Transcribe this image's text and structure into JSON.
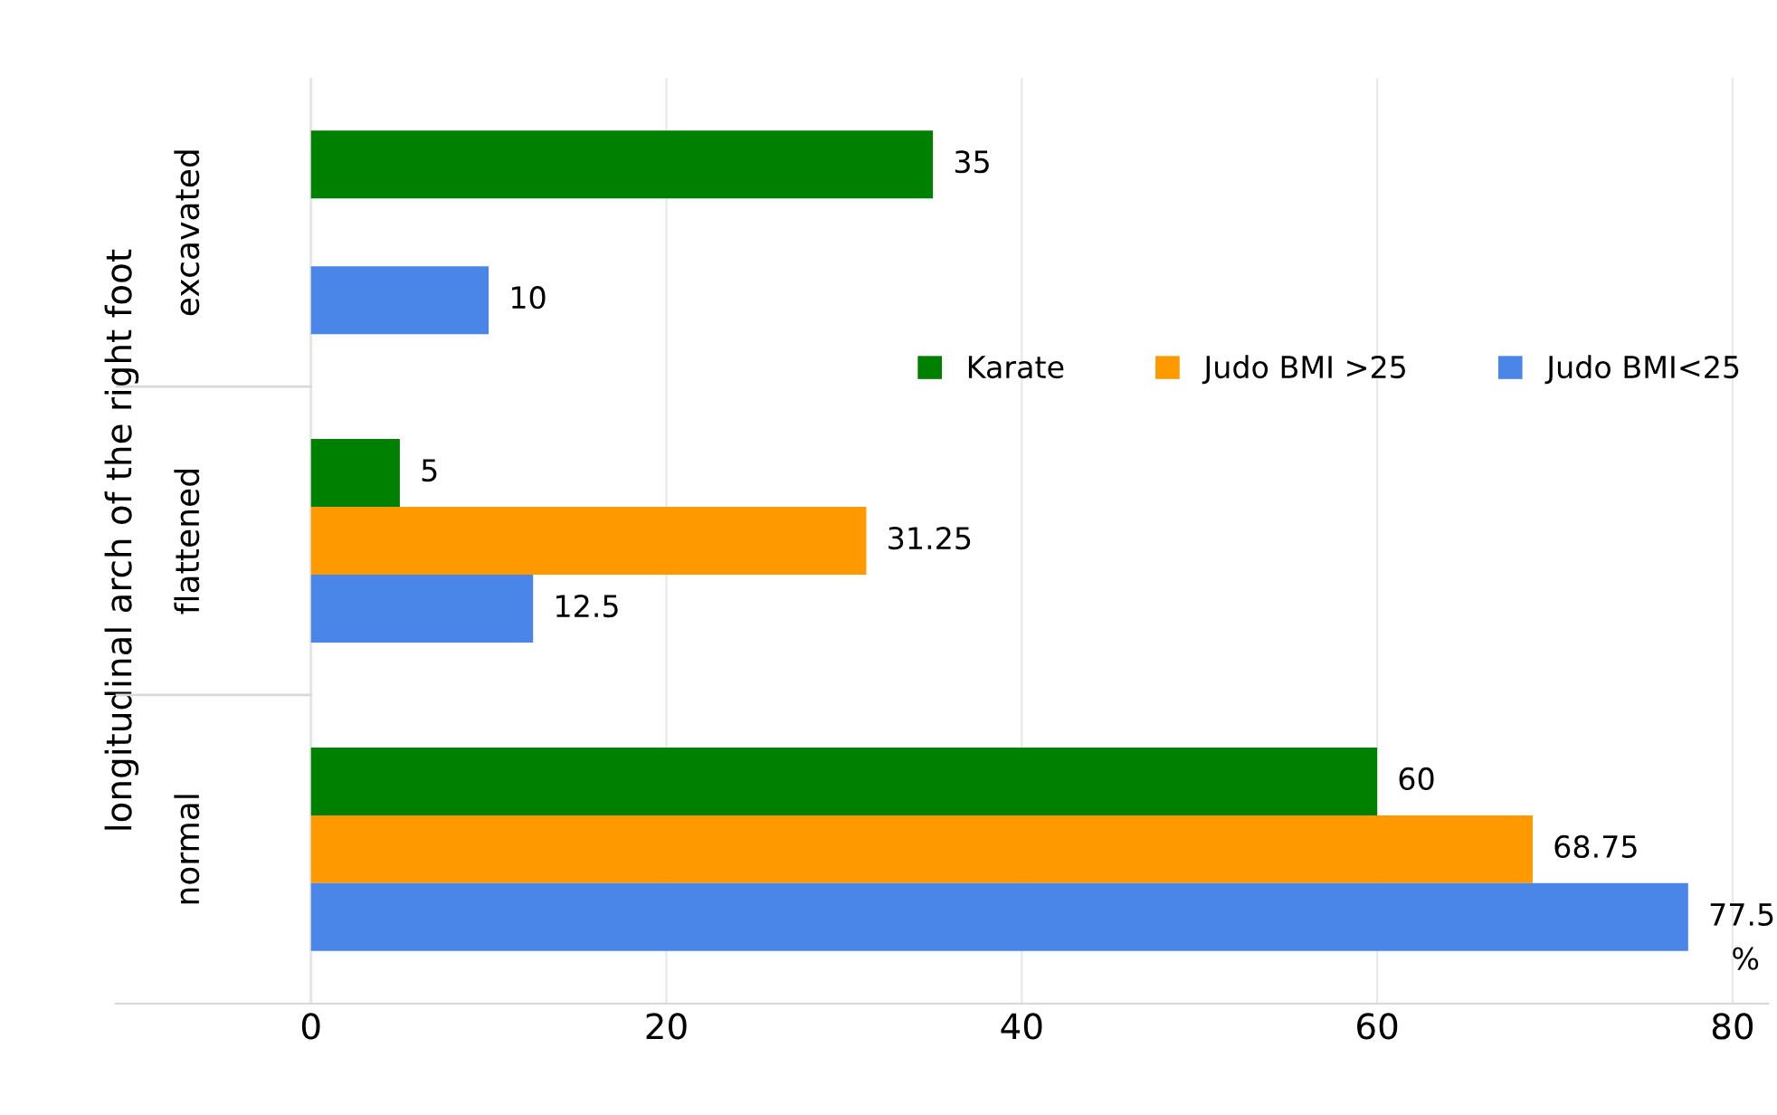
{
  "chart_data": {
    "type": "bar",
    "orientation": "horizontal",
    "ylabel": "longitudinal arch of the right foot",
    "categories": [
      "excavated",
      "flattened",
      "normal"
    ],
    "series": [
      {
        "name": "Karate",
        "color": "#008000",
        "values": [
          35,
          5,
          60
        ]
      },
      {
        "name": "Judo BMI >25",
        "color": "#ff9900",
        "values": [
          null,
          31.25,
          68.75
        ]
      },
      {
        "name": "Judo BMI<25",
        "color": "#4a86e8",
        "values": [
          10,
          12.5,
          77.5
        ]
      }
    ],
    "xlim": [
      -11,
      82
    ],
    "xticks": [
      0,
      20,
      40,
      60,
      80
    ],
    "grid": "x",
    "legend": "top right",
    "data_labels": true,
    "annotations": [
      "%"
    ]
  }
}
